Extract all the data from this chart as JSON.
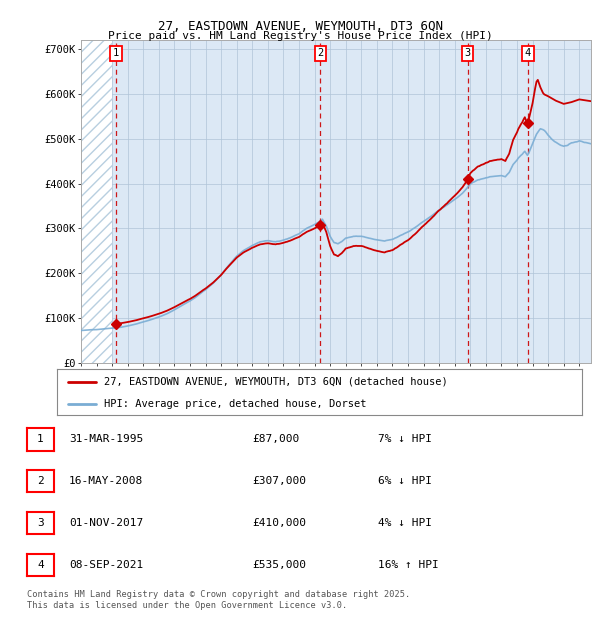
{
  "title_line1": "27, EASTDOWN AVENUE, WEYMOUTH, DT3 6QN",
  "title_line2": "Price paid vs. HM Land Registry's House Price Index (HPI)",
  "ylim": [
    0,
    720000
  ],
  "yticks": [
    0,
    100000,
    200000,
    300000,
    400000,
    500000,
    600000,
    700000
  ],
  "ytick_labels": [
    "£0",
    "£100K",
    "£200K",
    "£300K",
    "£400K",
    "£500K",
    "£600K",
    "£700K"
  ],
  "xlim_start": 1993.0,
  "xlim_end": 2025.75,
  "xticks": [
    1993,
    1994,
    1995,
    1996,
    1997,
    1998,
    1999,
    2000,
    2001,
    2002,
    2003,
    2004,
    2005,
    2006,
    2007,
    2008,
    2009,
    2010,
    2011,
    2012,
    2013,
    2014,
    2015,
    2016,
    2017,
    2018,
    2019,
    2020,
    2021,
    2022,
    2023,
    2024,
    2025
  ],
  "sale_dates": [
    1995.25,
    2008.375,
    2017.833,
    2021.69
  ],
  "sale_prices": [
    87000,
    307000,
    410000,
    535000
  ],
  "sale_labels": [
    "1",
    "2",
    "3",
    "4"
  ],
  "hpi_color": "#7aadd4",
  "price_color": "#cc0000",
  "vline_color": "#cc0000",
  "bg_color": "#dce8f5",
  "hatch_color": "#b8cfe0",
  "grid_color": "#b0c4d8",
  "legend_label_red": "27, EASTDOWN AVENUE, WEYMOUTH, DT3 6QN (detached house)",
  "legend_label_blue": "HPI: Average price, detached house, Dorset",
  "table_entries": [
    {
      "num": "1",
      "date": "31-MAR-1995",
      "price": "£87,000",
      "note": "7% ↓ HPI"
    },
    {
      "num": "2",
      "date": "16-MAY-2008",
      "price": "£307,000",
      "note": "6% ↓ HPI"
    },
    {
      "num": "3",
      "date": "01-NOV-2017",
      "price": "£410,000",
      "note": "4% ↓ HPI"
    },
    {
      "num": "4",
      "date": "08-SEP-2021",
      "price": "£535,000",
      "note": "16% ↑ HPI"
    }
  ],
  "footnote": "Contains HM Land Registry data © Crown copyright and database right 2025.\nThis data is licensed under the Open Government Licence v3.0."
}
